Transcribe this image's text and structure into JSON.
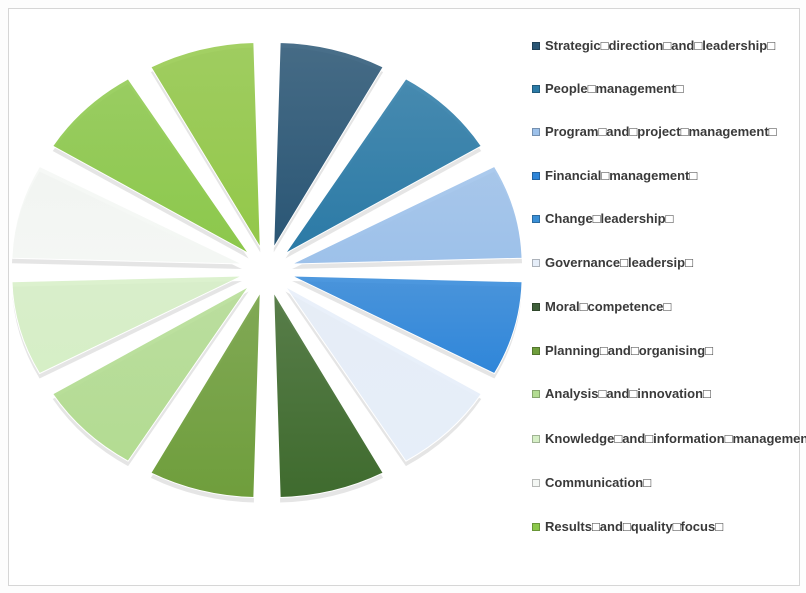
{
  "chart_data": {
    "type": "pie",
    "title": "",
    "categories": [
      "Strategic□direction□and□leadership□",
      "People□management□",
      "Program□and□project□management□",
      "Financial□management□",
      "Change□leadership□",
      "Governance□leadersip□",
      "Moral□competence□",
      "Planning□and□organising□",
      "Analysis□and□innovation□",
      "Knowledge□and□information□management□",
      "Communication□",
      "Results□and□quality□focus□"
    ],
    "values": [
      1,
      1,
      1,
      1,
      1,
      1,
      1,
      1,
      1,
      1,
      1,
      1
    ],
    "series": [
      {
        "slice_colors": [
          "#2a5675",
          "#2b7aa6",
          "#9dc1ea",
          "#2f86d9",
          "#e6eef9",
          "#3f6b2e",
          "#6f9e3c",
          "#b3dc92",
          "#d6efc6",
          "#f4f7f4",
          "#8cc84b",
          "#93c849"
        ]
      }
    ],
    "legend": {
      "placement": "right",
      "items": [
        {
          "label": "Strategic□direction□and□leadership□",
          "color": "#2a5675"
        },
        {
          "label": "People□management□",
          "color": "#2b7aa6"
        },
        {
          "label": "Program□and□project□management□",
          "color": "#9dc1ea"
        },
        {
          "label": "Financial□management□",
          "color": "#2f86d9"
        },
        {
          "label": "Change□leadership□",
          "color": "#3a8fd6"
        },
        {
          "label": "Governance□leadersip□",
          "color": "#e6eef9"
        },
        {
          "label": "Moral□competence□",
          "color": "#3f5f3a"
        },
        {
          "label": "Planning□and□organising□",
          "color": "#6f9e3c"
        },
        {
          "label": "Analysis□and□innovation□",
          "color": "#b3dc92"
        },
        {
          "label": "Knowledge□and□information□management□",
          "color": "#d6efc6"
        },
        {
          "label": "Communication□",
          "color": "#f4f7f4"
        },
        {
          "label": "Results□and□quality□focus□",
          "color": "#8cc84b"
        }
      ]
    }
  }
}
